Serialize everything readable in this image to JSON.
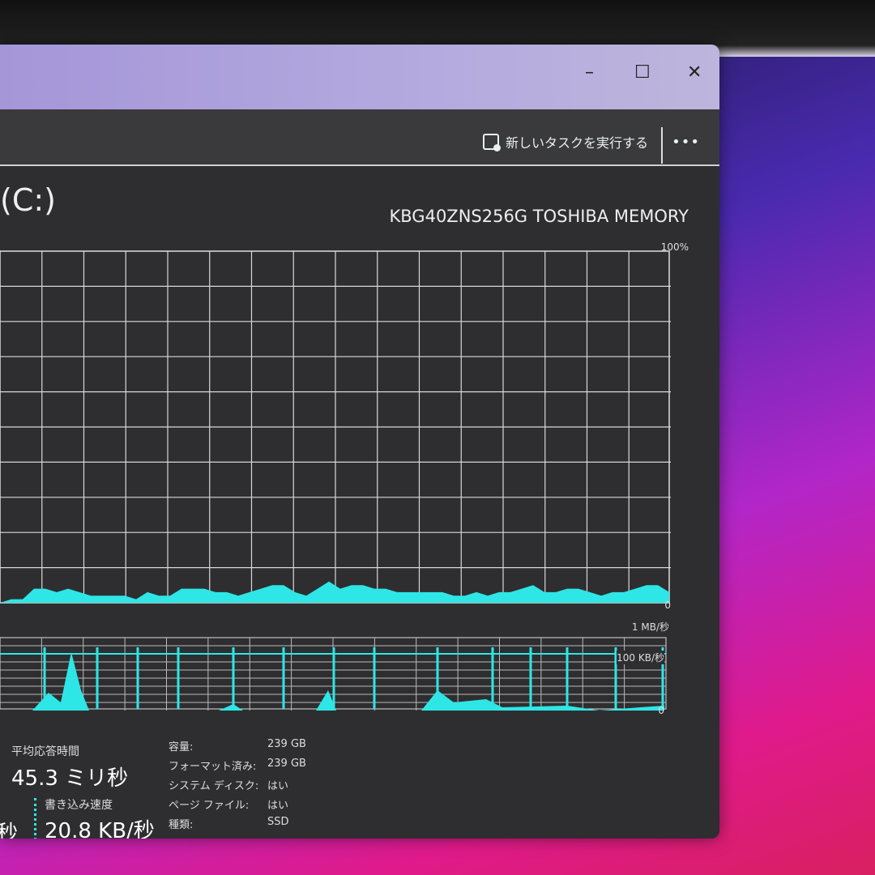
{
  "window": {
    "minimize": "–",
    "maximize": "☐",
    "close": "✕"
  },
  "toolbar": {
    "new_task_label": "新しいタスクを実行する",
    "new_task_icon": "run-task-icon",
    "more_label": "•••"
  },
  "disk": {
    "title": "(C:)",
    "model": "KBG40ZNS256G TOSHIBA MEMORY"
  },
  "active_chart": {
    "max_label": "100%",
    "min_label": "0",
    "color": "#2ee6e6",
    "values": [
      0,
      1,
      1,
      4,
      4,
      3,
      4,
      3,
      2,
      2,
      2,
      2,
      1,
      3,
      2,
      2,
      4,
      4,
      4,
      3,
      3,
      2,
      3,
      4,
      5,
      5,
      3,
      2,
      4,
      6,
      4,
      5,
      5,
      4,
      4,
      3,
      3,
      3,
      3,
      3,
      2,
      2,
      3,
      2,
      3,
      3,
      4,
      5,
      3,
      3,
      4,
      4,
      3,
      2,
      3,
      3,
      4,
      5,
      5,
      3
    ]
  },
  "transfer_chart": {
    "max_label": "1 MB/秒",
    "mid_label": "100 KB/秒",
    "min_label": "0",
    "color": "#2ee6e6"
  },
  "stats": {
    "avg_response_label": "平均応答時間",
    "avg_response_value": "45.3 ミリ秒",
    "read_value_partial": "秒",
    "write_speed_label": "書き込み速度",
    "write_speed_value": "20.8 KB/秒"
  },
  "properties": [
    {
      "label": "容量:",
      "value": "239 GB"
    },
    {
      "label": "フォーマット済み:",
      "value": "239 GB"
    },
    {
      "label": "システム ディスク:",
      "value": "はい"
    },
    {
      "label": "ページ ファイル:",
      "value": "はい"
    },
    {
      "label": "種類:",
      "value": "SSD"
    }
  ]
}
